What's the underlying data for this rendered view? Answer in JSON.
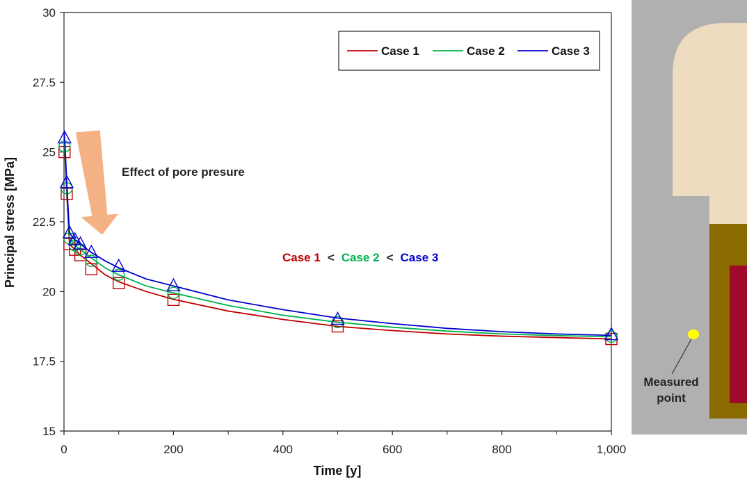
{
  "chart_data": {
    "type": "line",
    "title": "",
    "xlabel": "Time [y]",
    "ylabel": "Principal stress [MPa]",
    "xlim": [
      0,
      1000
    ],
    "ylim": [
      15,
      30
    ],
    "xticks": [
      0,
      200,
      400,
      600,
      800,
      1000
    ],
    "xtick_labels": [
      "0",
      "200",
      "400",
      "600",
      "800",
      "1,000"
    ],
    "yticks": [
      15,
      17.5,
      20,
      22.5,
      25,
      27.5,
      30
    ],
    "ytick_labels": [
      "15",
      "17.5",
      "20",
      "22.5",
      "25",
      "27.5",
      "30"
    ],
    "legend_position": "top-right",
    "series": [
      {
        "name": "Case 1",
        "color": "#c00000",
        "marker": "square",
        "line_x": [
          0.5,
          1,
          2,
          5,
          10,
          20,
          30,
          50,
          75,
          100,
          150,
          200,
          300,
          400,
          500,
          600,
          700,
          800,
          900,
          1000
        ],
        "line_y": [
          25.1,
          25.0,
          24.8,
          23.5,
          21.7,
          21.5,
          21.3,
          21.0,
          20.6,
          20.35,
          20.0,
          19.72,
          19.3,
          19.0,
          18.75,
          18.6,
          18.48,
          18.4,
          18.35,
          18.3
        ],
        "marker_x": [
          1,
          5,
          10,
          20,
          30,
          50,
          100,
          200,
          500,
          1000
        ],
        "marker_y": [
          25.0,
          23.5,
          21.7,
          21.5,
          21.3,
          20.8,
          20.3,
          19.7,
          18.75,
          18.3
        ]
      },
      {
        "name": "Case 2",
        "color": "#00b050",
        "marker": "circle",
        "line_x": [
          0.5,
          1,
          2,
          5,
          10,
          20,
          30,
          50,
          75,
          100,
          150,
          200,
          300,
          400,
          500,
          600,
          700,
          800,
          900,
          1000
        ],
        "line_y": [
          25.4,
          25.2,
          24.9,
          23.7,
          21.9,
          21.65,
          21.5,
          21.2,
          20.85,
          20.6,
          20.2,
          19.95,
          19.5,
          19.15,
          18.9,
          18.72,
          18.58,
          18.48,
          18.42,
          18.38
        ],
        "marker_x": [
          1,
          5,
          10,
          20,
          30,
          50,
          100,
          200,
          500,
          1000
        ],
        "marker_y": [
          25.2,
          23.7,
          21.9,
          21.65,
          21.5,
          21.1,
          20.6,
          19.95,
          18.9,
          18.38
        ]
      },
      {
        "name": "Case 3",
        "color": "#0000cc",
        "marker": "triangle",
        "line_x": [
          0.5,
          1,
          2,
          5,
          10,
          20,
          30,
          50,
          75,
          100,
          150,
          200,
          300,
          400,
          500,
          600,
          700,
          800,
          900,
          1000
        ],
        "line_y": [
          25.7,
          25.5,
          25.2,
          23.9,
          22.1,
          21.85,
          21.7,
          21.4,
          21.1,
          20.85,
          20.45,
          20.2,
          19.7,
          19.35,
          19.05,
          18.85,
          18.68,
          18.56,
          18.48,
          18.43
        ],
        "marker_x": [
          1,
          5,
          10,
          20,
          30,
          50,
          100,
          200,
          500,
          1000
        ],
        "marker_y": [
          25.5,
          23.9,
          22.1,
          21.85,
          21.7,
          21.4,
          20.9,
          20.2,
          19.0,
          18.45
        ]
      }
    ],
    "annotations": {
      "arrow_label": "Effect of pore presure",
      "comparison": [
        {
          "text": "Case 1",
          "color": "#c00000"
        },
        {
          "text": "<",
          "color": "#222222"
        },
        {
          "text": "Case 2",
          "color": "#00b050"
        },
        {
          "text": "<",
          "color": "#222222"
        },
        {
          "text": "Case 3",
          "color": "#0000cc"
        }
      ]
    }
  },
  "diagram": {
    "label_line1": "Measured",
    "label_line2": "point",
    "colors": {
      "background": "#b0b0b0",
      "top_block": "#eedcc0",
      "lower_block": "#8b6a00",
      "inner_block": "#9e0a2a",
      "point": "#ffff00"
    }
  },
  "colors": {
    "arrow": "#f4b183"
  }
}
